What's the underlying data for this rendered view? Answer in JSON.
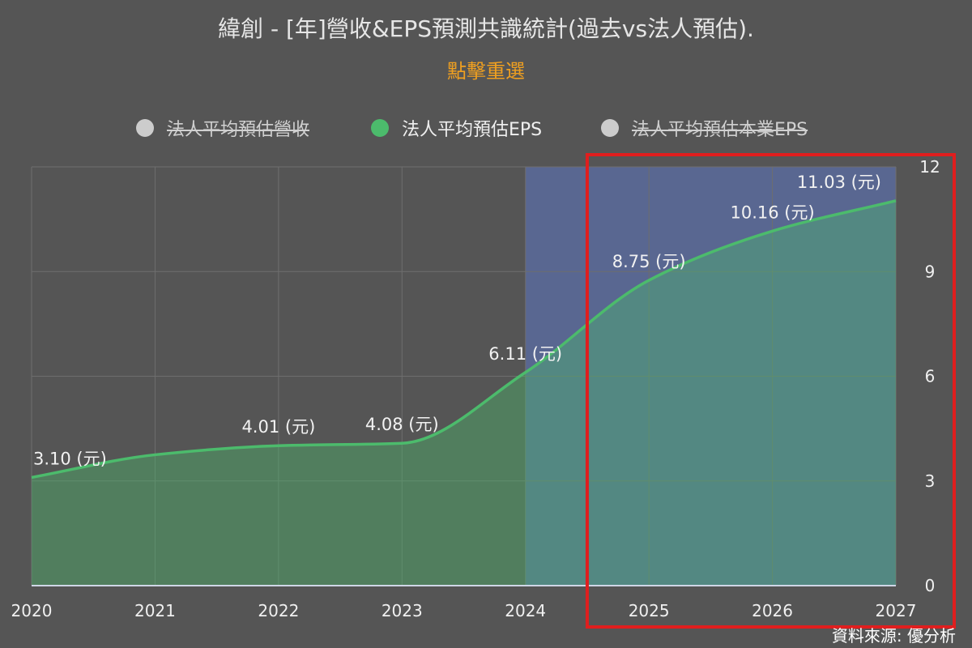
{
  "title": "緯創 - [年]營收&EPS預測共識統計(過去vs法人預估).",
  "reset_label": "點擊重選",
  "legend": [
    {
      "label": "法人平均預估營收",
      "active": false,
      "color": "#cccccc"
    },
    {
      "label": "法人平均預估EPS",
      "active": true,
      "color": "#4cbb6c"
    },
    {
      "label": "法人平均預估本業EPS",
      "active": false,
      "color": "#cccccc"
    }
  ],
  "source": "資料來源: 優分析",
  "chart_data": {
    "type": "area",
    "x": [
      "2020",
      "2021",
      "2022",
      "2023",
      "2024",
      "2025",
      "2026",
      "2027"
    ],
    "y_ticks": [
      "0",
      "3",
      "6",
      "9",
      "12"
    ],
    "ylim": [
      0,
      12
    ],
    "y_axis_position": "right",
    "grid": true,
    "series": [
      {
        "name": "法人平均預估EPS",
        "color": "#4cbb6c",
        "points": [
          {
            "x": "2020",
            "y": 3.1,
            "label": "3.10 (元)"
          },
          {
            "x": "2021",
            "y": 3.75,
            "label": ""
          },
          {
            "x": "2022",
            "y": 4.01,
            "label": "4.01 (元)"
          },
          {
            "x": "2023",
            "y": 4.08,
            "label": "4.08 (元)"
          },
          {
            "x": "2024",
            "y": 6.11,
            "label": "6.11 (元)"
          },
          {
            "x": "2025",
            "y": 8.75,
            "label": "8.75 (元)"
          },
          {
            "x": "2026",
            "y": 10.16,
            "label": "10.16 (元)"
          },
          {
            "x": "2027",
            "y": 11.03,
            "label": "11.03 (元)"
          }
        ]
      }
    ],
    "forecast_band": {
      "from": "2024",
      "to": "2027",
      "color": "#5a6b9c"
    },
    "highlight_box": {
      "from": "2024.5",
      "to": "2027",
      "color": "#e01e1e"
    }
  }
}
